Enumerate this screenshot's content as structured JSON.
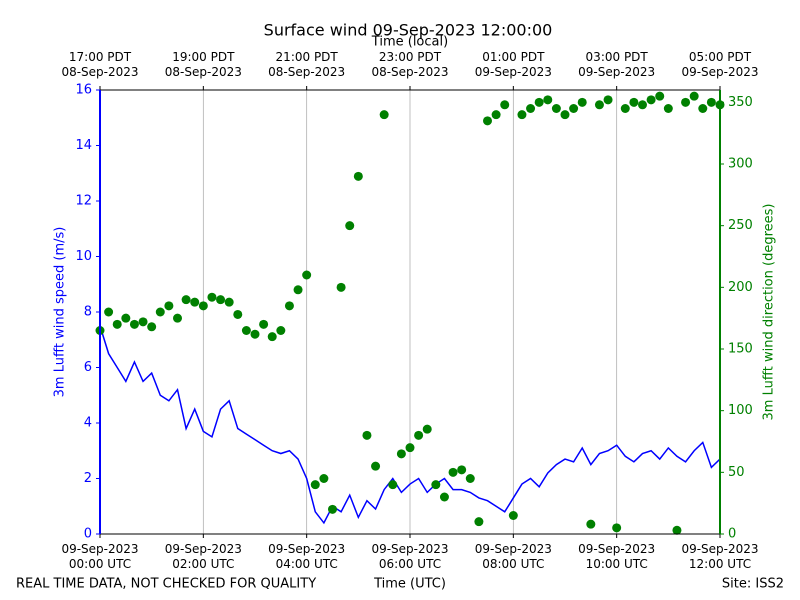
{
  "chart_data": {
    "type": "line-scatter",
    "title": "Surface wind 09-Sep-2023 12:00:00",
    "x_label": "Time (UTC)",
    "x2_label": "Time (local)",
    "y_label": "3m Lufft wind speed (m/s)",
    "y2_label": "3m Lufft wind direction (degrees)",
    "footer_left": "REAL TIME DATA, NOT CHECKED FOR QUALITY",
    "footer_right": "Site: ISS2",
    "x": [
      "2023-09-09 00:00",
      "2023-09-09 00:10",
      "2023-09-09 00:20",
      "2023-09-09 00:30",
      "2023-09-09 00:40",
      "2023-09-09 00:50",
      "2023-09-09 01:00",
      "2023-09-09 01:10",
      "2023-09-09 01:20",
      "2023-09-09 01:30",
      "2023-09-09 01:40",
      "2023-09-09 01:50",
      "2023-09-09 02:00",
      "2023-09-09 02:10",
      "2023-09-09 02:20",
      "2023-09-09 02:30",
      "2023-09-09 02:40",
      "2023-09-09 02:50",
      "2023-09-09 03:00",
      "2023-09-09 03:10",
      "2023-09-09 03:20",
      "2023-09-09 03:30",
      "2023-09-09 03:40",
      "2023-09-09 03:50",
      "2023-09-09 04:00",
      "2023-09-09 04:10",
      "2023-09-09 04:20",
      "2023-09-09 04:30",
      "2023-09-09 04:40",
      "2023-09-09 04:50",
      "2023-09-09 05:00",
      "2023-09-09 05:10",
      "2023-09-09 05:20",
      "2023-09-09 05:30",
      "2023-09-09 05:40",
      "2023-09-09 05:50",
      "2023-09-09 06:00",
      "2023-09-09 06:10",
      "2023-09-09 06:20",
      "2023-09-09 06:30",
      "2023-09-09 06:40",
      "2023-09-09 06:50",
      "2023-09-09 07:00",
      "2023-09-09 07:10",
      "2023-09-09 07:20",
      "2023-09-09 07:30",
      "2023-09-09 07:40",
      "2023-09-09 07:50",
      "2023-09-09 08:00",
      "2023-09-09 08:10",
      "2023-09-09 08:20",
      "2023-09-09 08:30",
      "2023-09-09 08:40",
      "2023-09-09 08:50",
      "2023-09-09 09:00",
      "2023-09-09 09:10",
      "2023-09-09 09:20",
      "2023-09-09 09:30",
      "2023-09-09 09:40",
      "2023-09-09 09:50",
      "2023-09-09 10:00",
      "2023-09-09 10:10",
      "2023-09-09 10:20",
      "2023-09-09 10:30",
      "2023-09-09 10:40",
      "2023-09-09 10:50",
      "2023-09-09 11:00",
      "2023-09-09 11:10",
      "2023-09-09 11:20",
      "2023-09-09 11:30",
      "2023-09-09 11:40",
      "2023-09-09 11:50",
      "2023-09-09 12:00"
    ],
    "series": [
      {
        "name": "3m Lufft wind speed",
        "type": "line",
        "color": "#0000ff",
        "values": [
          7.5,
          6.5,
          6.0,
          5.5,
          6.2,
          5.5,
          5.8,
          5.0,
          4.8,
          5.2,
          3.8,
          4.5,
          3.7,
          3.5,
          4.5,
          4.8,
          3.8,
          3.6,
          3.4,
          3.2,
          3.0,
          2.9,
          3.0,
          2.7,
          2.0,
          0.8,
          0.4,
          1.0,
          0.8,
          1.4,
          0.6,
          1.2,
          0.9,
          1.6,
          2.0,
          1.5,
          1.8,
          2.0,
          1.5,
          1.8,
          2.0,
          1.6,
          1.6,
          1.5,
          1.3,
          1.2,
          1.0,
          0.8,
          1.3,
          1.8,
          2.0,
          1.7,
          2.2,
          2.5,
          2.7,
          2.6,
          3.1,
          2.5,
          2.9,
          3.0,
          3.2,
          2.8,
          2.6,
          2.9,
          3.0,
          2.7,
          3.1,
          2.8,
          2.6,
          3.0,
          3.3,
          2.4,
          2.7
        ]
      },
      {
        "name": "3m Lufft wind direction",
        "type": "scatter",
        "axis": "y2",
        "color": "#008000",
        "values": [
          165,
          180,
          170,
          175,
          170,
          172,
          168,
          180,
          185,
          175,
          190,
          188,
          185,
          192,
          190,
          188,
          178,
          165,
          162,
          170,
          160,
          165,
          185,
          198,
          210,
          40,
          45,
          20,
          200,
          250,
          290,
          80,
          55,
          340,
          40,
          65,
          70,
          80,
          85,
          40,
          30,
          50,
          52,
          45,
          10,
          335,
          340,
          348,
          15,
          340,
          345,
          350,
          352,
          345,
          340,
          345,
          350,
          8,
          348,
          352,
          5,
          345,
          350,
          348,
          352,
          355,
          345,
          3,
          350,
          355,
          345,
          350,
          348
        ]
      }
    ],
    "xlim": [
      "2023-09-09 00:00",
      "2023-09-09 12:00"
    ],
    "xticks": [
      {
        "value": "2023-09-09 00:00",
        "label": "09-Sep-2023\n00:00 UTC"
      },
      {
        "value": "2023-09-09 02:00",
        "label": "09-Sep-2023\n02:00 UTC"
      },
      {
        "value": "2023-09-09 04:00",
        "label": "09-Sep-2023\n04:00 UTC"
      },
      {
        "value": "2023-09-09 06:00",
        "label": "09-Sep-2023\n06:00 UTC"
      },
      {
        "value": "2023-09-09 08:00",
        "label": "09-Sep-2023\n08:00 UTC"
      },
      {
        "value": "2023-09-09 10:00",
        "label": "09-Sep-2023\n10:00 UTC"
      },
      {
        "value": "2023-09-09 12:00",
        "label": "09-Sep-2023\n12:00 UTC"
      }
    ],
    "x2ticks": [
      {
        "value": "2023-09-09 00:00",
        "label": "17:00 PDT\n08-Sep-2023"
      },
      {
        "value": "2023-09-09 02:00",
        "label": "19:00 PDT\n08-Sep-2023"
      },
      {
        "value": "2023-09-09 04:00",
        "label": "21:00 PDT\n08-Sep-2023"
      },
      {
        "value": "2023-09-09 06:00",
        "label": "23:00 PDT\n08-Sep-2023"
      },
      {
        "value": "2023-09-09 08:00",
        "label": "01:00 PDT\n09-Sep-2023"
      },
      {
        "value": "2023-09-09 10:00",
        "label": "03:00 PDT\n09-Sep-2023"
      },
      {
        "value": "2023-09-09 12:00",
        "label": "05:00 PDT\n09-Sep-2023"
      }
    ],
    "ylim": [
      0,
      16
    ],
    "yticks": [
      0,
      2,
      4,
      6,
      8,
      10,
      12,
      14,
      16
    ],
    "y2lim": [
      0,
      360
    ],
    "y2ticks": [
      0,
      50,
      100,
      150,
      200,
      250,
      300,
      350
    ],
    "grid": true
  }
}
